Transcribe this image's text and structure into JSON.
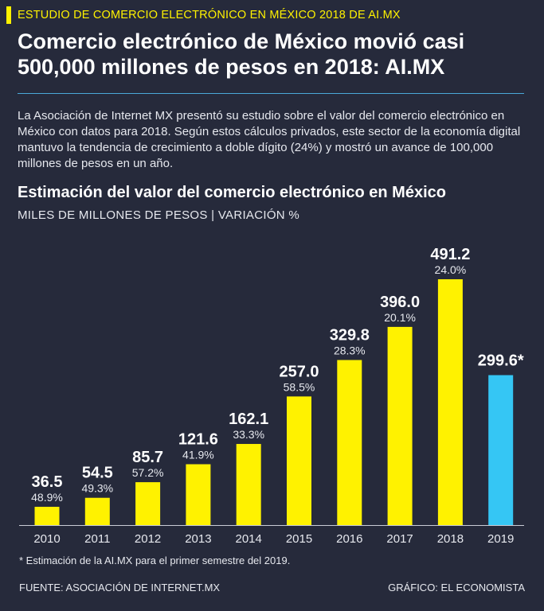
{
  "kicker": "ESTUDIO DE COMERCIO ELECTRÓNICO EN MÉXICO 2018 DE AI.MX",
  "headline": "Comercio electrónico de México movió casi 500,000 millones de pesos en 2018: AI.MX",
  "intro": "La Asociación de Internet MX presentó su estudio sobre el valor del comercio electrónico en México con datos para 2018. Según estos cálculos privados, este sector de la economía digital mantuvo la tendencia de crecimiento a doble dígito (24%) y mostró un avance de 100,000 millones de pesos en un año.",
  "footnote": "* Estimación de la AI.MX para el primer semestre del 2019.",
  "source": "FUENTE: ASOCIACIÓN DE INTERNET.MX",
  "credit": "GRÁFICO: EL ECONOMISTA",
  "colors": {
    "background": "#262a3b",
    "bar": "#fff200",
    "bar_estimate": "#35c6f4",
    "accent": "#fff200",
    "rule": "#4aa8d8"
  },
  "chart_data": {
    "type": "bar",
    "title": "Estimación del valor del comercio electrónico en México",
    "subtitle": "MILES DE MILLONES DE PESOS | VARIACIÓN %",
    "categories": [
      "2010",
      "2011",
      "2012",
      "2013",
      "2014",
      "2015",
      "2016",
      "2017",
      "2018",
      "2019"
    ],
    "values": [
      36.5,
      54.5,
      85.7,
      121.6,
      162.1,
      257.0,
      329.8,
      396.0,
      491.2,
      299.6
    ],
    "value_labels": [
      "36.5",
      "54.5",
      "85.7",
      "121.6",
      "162.1",
      "257.0",
      "329.8",
      "396.0",
      "491.2",
      "299.6*"
    ],
    "variation_labels": [
      "48.9%",
      "49.3%",
      "57.2%",
      "41.9%",
      "33.3%",
      "58.5%",
      "28.3%",
      "20.1%",
      "24.0%",
      ""
    ],
    "estimate": [
      false,
      false,
      false,
      false,
      false,
      false,
      false,
      false,
      false,
      true
    ],
    "xlabel": "",
    "ylabel": "",
    "ylim": [
      0,
      491.2
    ],
    "grid": false
  }
}
